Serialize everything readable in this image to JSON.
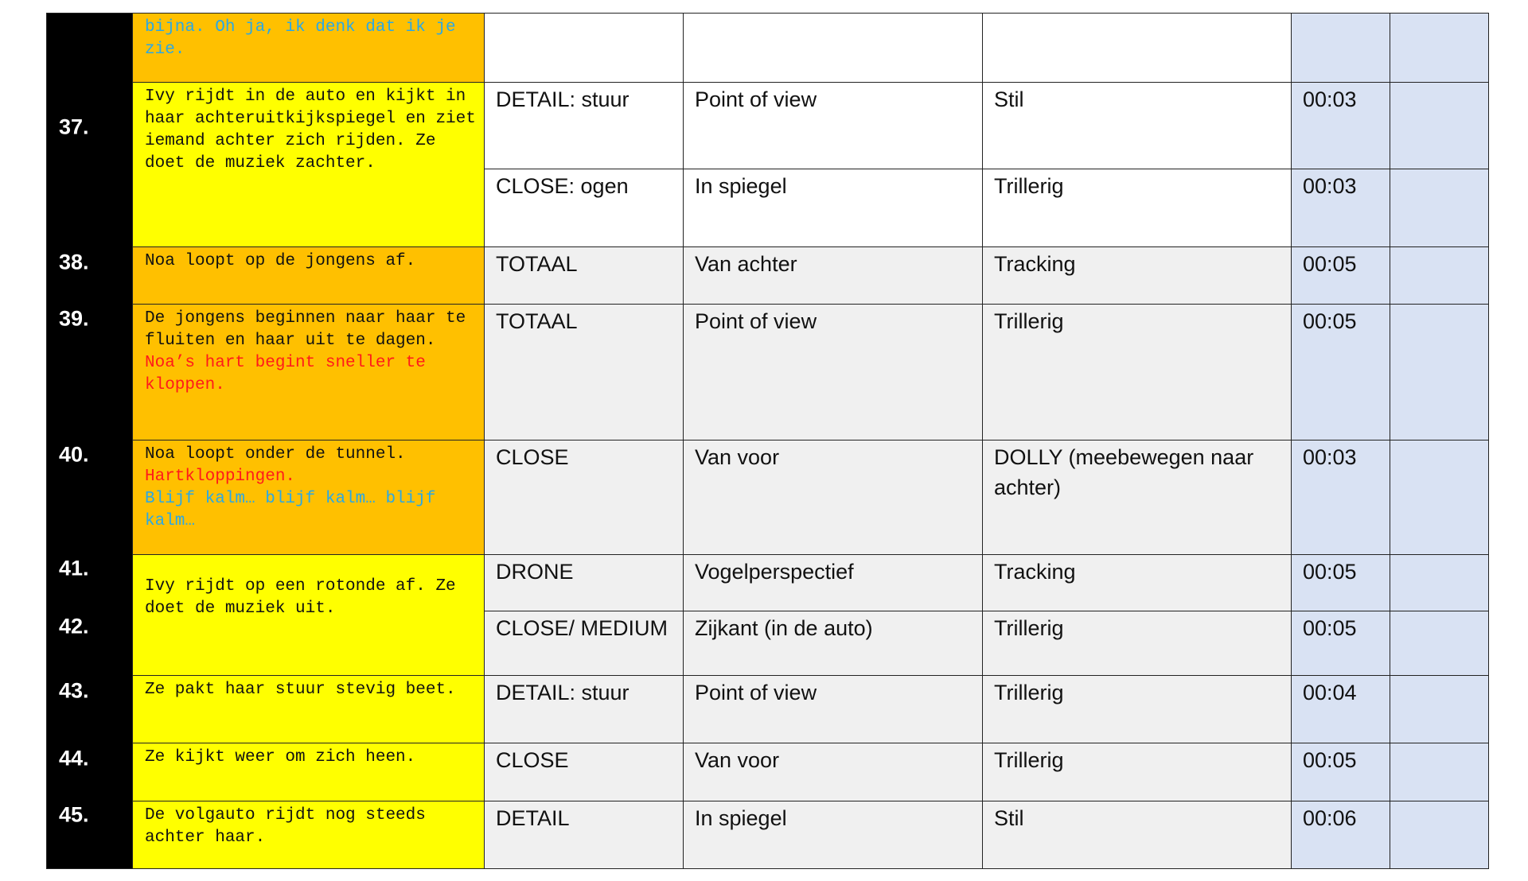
{
  "rows": {
    "r36": {
      "desc": "bijna. Oh ja, ik denk dat ik je zie."
    },
    "r37": {
      "num": "37.",
      "desc": "Ivy rijdt in de auto en kijkt in haar achteruitkijkspiegel en ziet iemand achter zich rijden. Ze doet de muziek zachter.",
      "shots": [
        {
          "shot": "DETAIL: stuur",
          "angle": "Point of view",
          "movement": "Stil",
          "duration": "00:03"
        },
        {
          "shot": "CLOSE: ogen",
          "angle": "In spiegel",
          "movement": "Trillerig",
          "duration": "00:03"
        }
      ]
    },
    "r38": {
      "num": "38.",
      "desc": "Noa loopt op de jongens af.",
      "shot": "TOTAAL",
      "angle": "Van achter",
      "movement": "Tracking",
      "duration": "00:05"
    },
    "r39": {
      "num": "39.",
      "desc": "De jongens beginnen naar haar te fluiten en haar uit te dagen.",
      "desc_red": "Noa’s hart begint sneller te kloppen.",
      "shot": "TOTAAL",
      "angle": "Point of view",
      "movement": "Trillerig",
      "duration": "00:05"
    },
    "r40": {
      "num": "40.",
      "desc": "Noa loopt onder de tunnel.",
      "desc_red": "Hartkloppingen.",
      "desc_blue": "Blijf kalm… blijf kalm… blijf kalm…",
      "shot": "CLOSE",
      "angle": "Van voor",
      "movement": "DOLLY (meebewegen naar achter)",
      "duration": "00:03"
    },
    "r41_42": {
      "desc": "Ivy rijdt op een rotonde af. Ze doet de muziek uit."
    },
    "r41": {
      "num": "41.",
      "shot": "DRONE",
      "angle": "Vogelperspectief",
      "movement": "Tracking",
      "duration": "00:05"
    },
    "r42": {
      "num": "42.",
      "shot": "CLOSE/ MEDIUM",
      "angle": "Zijkant (in de auto)",
      "movement": "Trillerig",
      "duration": "00:05"
    },
    "r43": {
      "num": "43.",
      "desc": "Ze pakt haar stuur stevig beet.",
      "shot": "DETAIL: stuur",
      "angle": "Point of view",
      "movement": "Trillerig",
      "duration": "00:04"
    },
    "r44": {
      "num": "44.",
      "desc": "Ze kijkt weer om zich heen.",
      "shot": "CLOSE",
      "angle": "Van voor",
      "movement": "Trillerig",
      "duration": "00:05"
    },
    "r45": {
      "num": "45.",
      "desc": "De volgauto rijdt nog steeds achter haar.",
      "shot": "DETAIL",
      "angle": "In spiegel",
      "movement": "Stil",
      "duration": "00:06"
    }
  },
  "colors": {
    "orange": "#FFC000",
    "yellow": "#FFFF00",
    "blue_col": "#D9E2F3",
    "blue_text": "#2AA8E6",
    "red_text": "#FF1A1A"
  }
}
